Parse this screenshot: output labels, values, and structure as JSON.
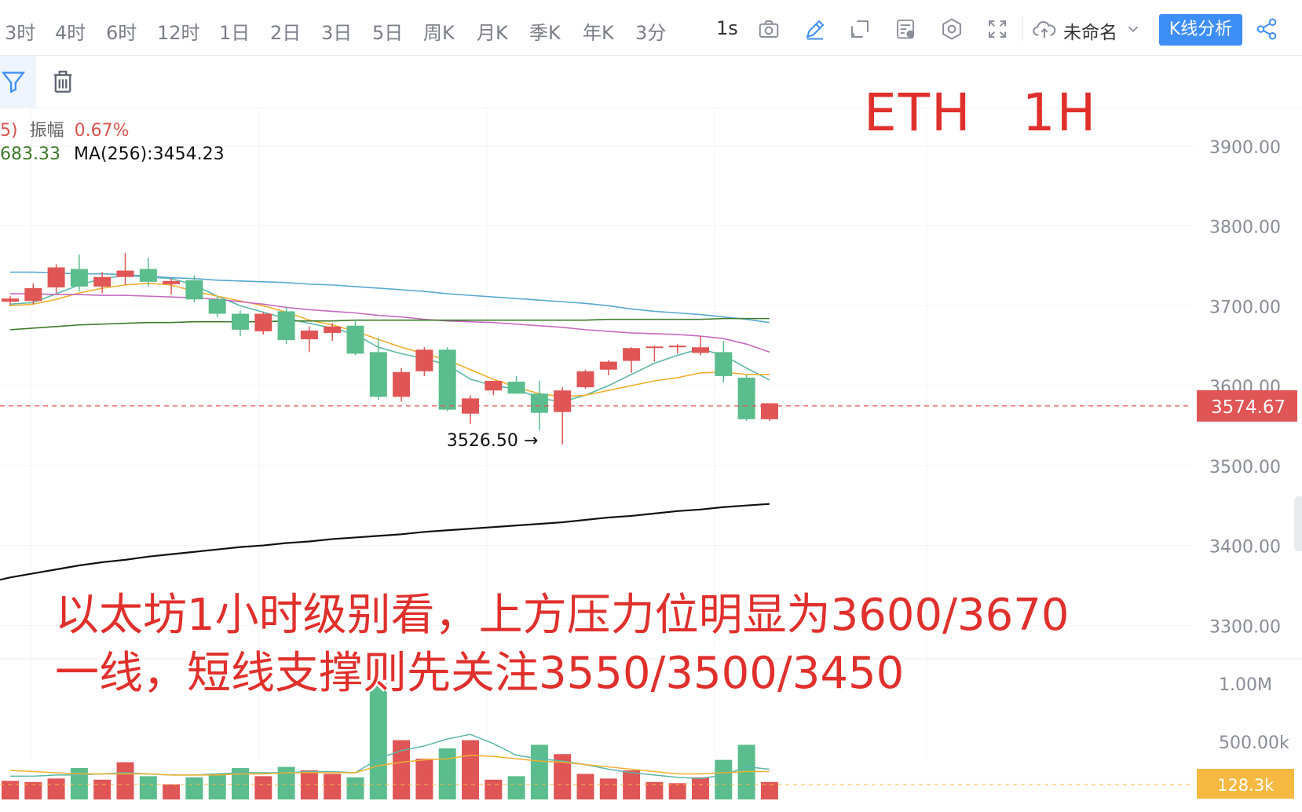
{
  "toolbar": {
    "timeframes": [
      "3时",
      "4时",
      "6时",
      "12时",
      "1日",
      "2日",
      "3日",
      "5日",
      "周K",
      "月K",
      "季K",
      "年K",
      "3分"
    ],
    "interval": "1s",
    "layout_name": "未命名",
    "kline_analysis": "K线分析",
    "icons": [
      "camera-icon",
      "pencil-icon",
      "crosshair-frame-icon",
      "indicator-icon",
      "settings-icon",
      "fullscreen-icon",
      "cloud-upload-icon",
      "chevron-down-icon",
      "share-icon"
    ]
  },
  "subbar": {
    "icons": [
      "filter-icon",
      "trash-icon"
    ]
  },
  "legend": {
    "amp_prefix": "5)",
    "amp_label": "振幅",
    "amp_value": "0.67%",
    "ma_prev_value": "683.33",
    "ma256_label": "MA(256):3454.23"
  },
  "overlay": {
    "title_symbol": "ETH",
    "title_interval": "1H",
    "note_line1": "以太坊1小时级别看，上方压力位明显为3600/3670",
    "note_line2": "一线，短线支撑则先关注3550/3500/3450"
  },
  "colors": {
    "up": "#e05555",
    "down": "#5bbd8d",
    "accent": "#3e8ef7",
    "price_tag": "#e05555",
    "volume_tag": "#f5b942"
  },
  "chart_data": {
    "type": "candlestick",
    "symbol": "ETH",
    "interval": "1H",
    "y_ticks": [
      3900,
      3800,
      3700,
      3600,
      3500,
      3400,
      3300
    ],
    "y_tick_labels": [
      "3900.00",
      "3800.00",
      "3700.00",
      "3600.00",
      "3500.00",
      "3400.00",
      "3300.00"
    ],
    "ylim": [
      3262,
      3948
    ],
    "last_price": 3574.67,
    "last_price_label": "3574.67",
    "low_annotation": {
      "value": 3526.5,
      "label": "3526.50 →",
      "index": 23
    },
    "candles": [
      {
        "o": 3705,
        "h": 3712,
        "l": 3700,
        "c": 3709
      },
      {
        "o": 3706,
        "h": 3728,
        "l": 3702,
        "c": 3722
      },
      {
        "o": 3723,
        "h": 3752,
        "l": 3716,
        "c": 3748
      },
      {
        "o": 3746,
        "h": 3764,
        "l": 3718,
        "c": 3724
      },
      {
        "o": 3724,
        "h": 3742,
        "l": 3716,
        "c": 3736
      },
      {
        "o": 3736,
        "h": 3766,
        "l": 3726,
        "c": 3744
      },
      {
        "o": 3746,
        "h": 3760,
        "l": 3724,
        "c": 3730
      },
      {
        "o": 3727,
        "h": 3734,
        "l": 3714,
        "c": 3731
      },
      {
        "o": 3732,
        "h": 3738,
        "l": 3704,
        "c": 3708
      },
      {
        "o": 3708,
        "h": 3712,
        "l": 3686,
        "c": 3690
      },
      {
        "o": 3690,
        "h": 3694,
        "l": 3662,
        "c": 3670
      },
      {
        "o": 3668,
        "h": 3692,
        "l": 3664,
        "c": 3690
      },
      {
        "o": 3693,
        "h": 3699,
        "l": 3652,
        "c": 3657
      },
      {
        "o": 3658,
        "h": 3674,
        "l": 3642,
        "c": 3669
      },
      {
        "o": 3666,
        "h": 3678,
        "l": 3656,
        "c": 3674
      },
      {
        "o": 3675,
        "h": 3682,
        "l": 3638,
        "c": 3640
      },
      {
        "o": 3642,
        "h": 3660,
        "l": 3582,
        "c": 3586
      },
      {
        "o": 3586,
        "h": 3622,
        "l": 3580,
        "c": 3617
      },
      {
        "o": 3618,
        "h": 3648,
        "l": 3612,
        "c": 3645
      },
      {
        "o": 3645,
        "h": 3648,
        "l": 3568,
        "c": 3570
      },
      {
        "o": 3565,
        "h": 3588,
        "l": 3552,
        "c": 3584
      },
      {
        "o": 3594,
        "h": 3606,
        "l": 3588,
        "c": 3606
      },
      {
        "o": 3605,
        "h": 3612,
        "l": 3590,
        "c": 3590
      },
      {
        "o": 3590,
        "h": 3606,
        "l": 3544,
        "c": 3566
      },
      {
        "o": 3567,
        "h": 3598,
        "l": 3526.5,
        "c": 3594
      },
      {
        "o": 3598,
        "h": 3620,
        "l": 3596,
        "c": 3618
      },
      {
        "o": 3620,
        "h": 3632,
        "l": 3613,
        "c": 3630
      },
      {
        "o": 3631,
        "h": 3648,
        "l": 3616,
        "c": 3647
      },
      {
        "o": 3647,
        "h": 3650,
        "l": 3630,
        "c": 3649
      },
      {
        "o": 3649,
        "h": 3652,
        "l": 3640,
        "c": 3650
      },
      {
        "o": 3641,
        "h": 3662,
        "l": 3638,
        "c": 3648
      },
      {
        "o": 3642,
        "h": 3656,
        "l": 3604,
        "c": 3612
      },
      {
        "o": 3610,
        "h": 3614,
        "l": 3556,
        "c": 3558
      },
      {
        "o": 3558,
        "h": 3578,
        "l": 3556,
        "c": 3578
      }
    ],
    "ma_lines": [
      {
        "name": "MA-teal",
        "color": "#5cb8a8",
        "values": [
          3702,
          3704,
          3715,
          3726,
          3734,
          3738,
          3736,
          3734,
          3726,
          3712,
          3700,
          3692,
          3684,
          3678,
          3672,
          3664,
          3648,
          3640,
          3634,
          3626,
          3608,
          3600,
          3596,
          3584,
          3580,
          3588,
          3600,
          3614,
          3628,
          3638,
          3646,
          3638,
          3622,
          3607
        ]
      },
      {
        "name": "MA-orange",
        "color": "#f0b030",
        "values": [
          3700,
          3702,
          3708,
          3716,
          3722,
          3726,
          3728,
          3726,
          3718,
          3712,
          3706,
          3700,
          3692,
          3682,
          3676,
          3668,
          3658,
          3648,
          3640,
          3632,
          3620,
          3608,
          3598,
          3590,
          3586,
          3588,
          3594,
          3600,
          3606,
          3610,
          3616,
          3617,
          3614,
          3614
        ]
      },
      {
        "name": "MA-blue",
        "color": "#58a9cf",
        "values": [
          3742,
          3742,
          3741,
          3740,
          3740,
          3739,
          3737,
          3735,
          3734,
          3732,
          3731,
          3730,
          3729,
          3727,
          3726,
          3724,
          3722,
          3720,
          3718,
          3715,
          3713,
          3711,
          3709,
          3707,
          3705,
          3703,
          3700,
          3696,
          3693,
          3691,
          3689,
          3686,
          3683,
          3679
        ]
      },
      {
        "name": "MA-magenta",
        "color": "#c76abf",
        "values": [
          3715,
          3715,
          3714,
          3714,
          3713,
          3713,
          3712,
          3711,
          3710,
          3708,
          3705,
          3702,
          3698,
          3695,
          3693,
          3691,
          3688,
          3686,
          3683,
          3681,
          3680,
          3679,
          3677,
          3675,
          3673,
          3670,
          3668,
          3666,
          3665,
          3664,
          3662,
          3659,
          3652,
          3642
        ]
      },
      {
        "name": "MA-darkgreen",
        "color": "#3d7a2a",
        "values": [
          3670,
          3672,
          3674,
          3676,
          3677,
          3678,
          3679,
          3679,
          3680,
          3680,
          3680,
          3680,
          3681,
          3681,
          3681,
          3682,
          3682,
          3682,
          3682,
          3682,
          3682,
          3682,
          3682,
          3682,
          3682,
          3682,
          3683,
          3683,
          3683,
          3683,
          3683,
          3684,
          3684,
          3684
        ]
      },
      {
        "name": "MA(256)",
        "color": "#111111",
        "values": [
          3360,
          3365,
          3370,
          3375,
          3379,
          3382,
          3386,
          3389,
          3392,
          3395,
          3398,
          3400,
          3403,
          3405,
          3408,
          3410,
          3412,
          3414,
          3417,
          3419,
          3421,
          3423,
          3425,
          3427,
          3429,
          3432,
          3435,
          3437,
          3440,
          3443,
          3445,
          3448,
          3450,
          3452
        ]
      }
    ],
    "volume": {
      "tick_labels": [
        "1.00M",
        "500.00k"
      ],
      "tick_values": [
        1000000,
        500000
      ],
      "current_label": "128.3k",
      "bars": [
        160000,
        150000,
        180000,
        270000,
        170000,
        320000,
        200000,
        130000,
        190000,
        220000,
        270000,
        200000,
        280000,
        250000,
        220000,
        190000,
        1000000,
        510000,
        350000,
        440000,
        510000,
        170000,
        200000,
        470000,
        390000,
        220000,
        180000,
        250000,
        150000,
        140000,
        190000,
        340000,
        470000,
        150000
      ],
      "ma_lines": [
        {
          "color": "#5cb8a8",
          "values": [
            200000,
            200000,
            210000,
            210000,
            220000,
            230000,
            220000,
            210000,
            210000,
            220000,
            230000,
            230000,
            230000,
            240000,
            240000,
            230000,
            350000,
            420000,
            460000,
            520000,
            560000,
            480000,
            380000,
            350000,
            330000,
            300000,
            260000,
            230000,
            210000,
            190000,
            180000,
            210000,
            280000,
            260000
          ]
        },
        {
          "color": "#f0b030",
          "values": [
            250000,
            240000,
            230000,
            220000,
            220000,
            220000,
            220000,
            210000,
            210000,
            210000,
            220000,
            220000,
            230000,
            230000,
            230000,
            230000,
            290000,
            320000,
            340000,
            350000,
            380000,
            370000,
            350000,
            330000,
            320000,
            300000,
            280000,
            260000,
            240000,
            220000,
            220000,
            230000,
            240000,
            240000
          ]
        }
      ]
    }
  }
}
